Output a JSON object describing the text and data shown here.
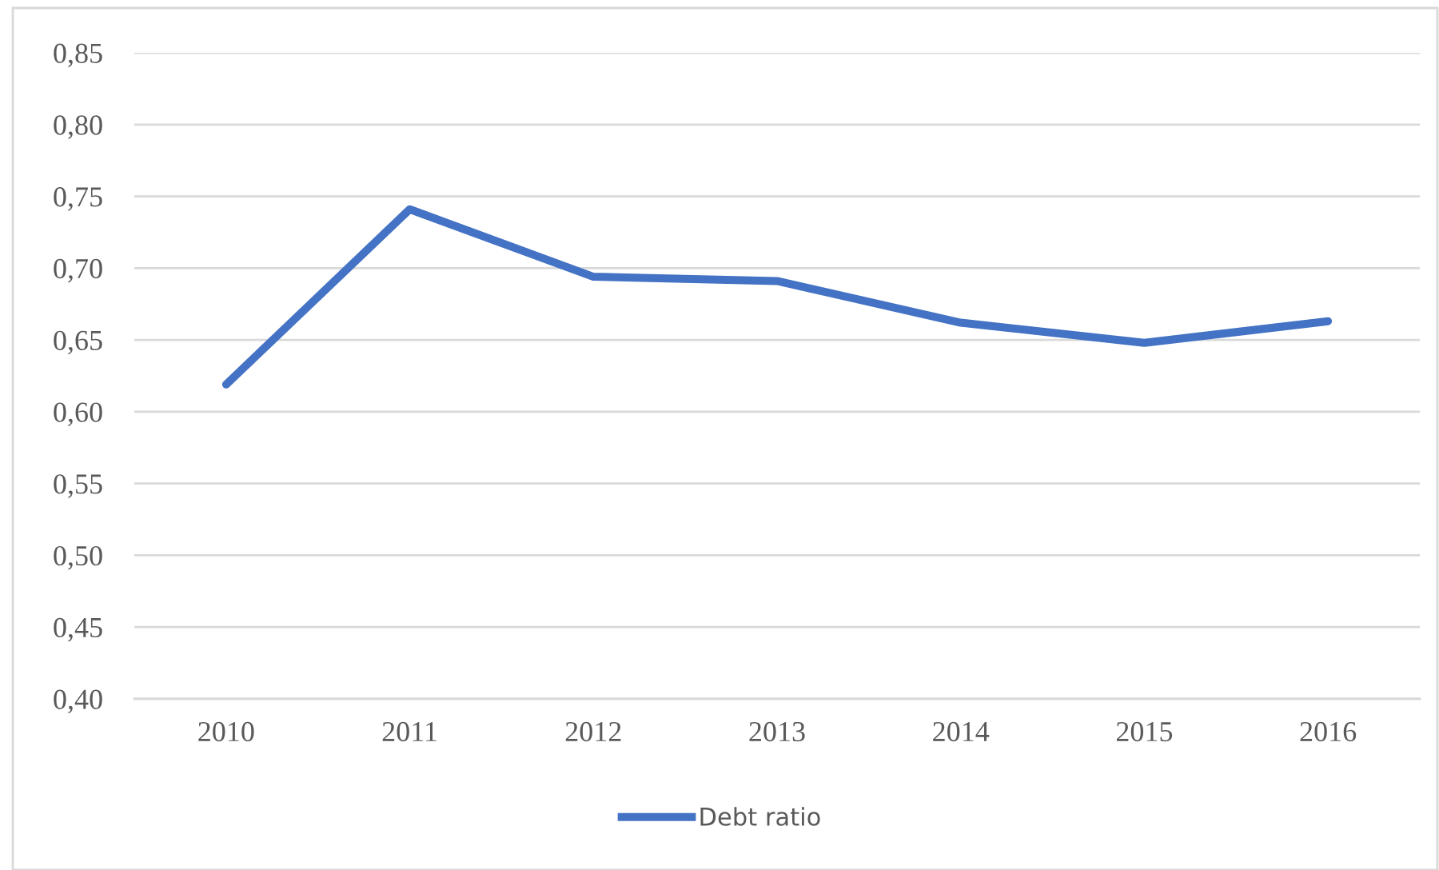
{
  "chart_data": {
    "type": "line",
    "categories": [
      "2010",
      "2011",
      "2012",
      "2013",
      "2014",
      "2015",
      "2016"
    ],
    "series": [
      {
        "name": "Debt ratio",
        "color": "#4472c4",
        "values": [
          0.619,
          0.741,
          0.694,
          0.691,
          0.662,
          0.648,
          0.663
        ]
      }
    ],
    "ylim": [
      0.4,
      0.85
    ],
    "yticks": [
      {
        "value": 0.4,
        "label": "0,40"
      },
      {
        "value": 0.45,
        "label": "0,45"
      },
      {
        "value": 0.5,
        "label": "0,50"
      },
      {
        "value": 0.55,
        "label": "0,55"
      },
      {
        "value": 0.6,
        "label": "0,60"
      },
      {
        "value": 0.65,
        "label": "0,65"
      },
      {
        "value": 0.7,
        "label": "0,70"
      },
      {
        "value": 0.75,
        "label": "0,75"
      },
      {
        "value": 0.8,
        "label": "0,80"
      },
      {
        "value": 0.85,
        "label": "0,85"
      }
    ],
    "grid": "y",
    "legend": "bottom",
    "marker": "none",
    "line_style": "solid"
  }
}
